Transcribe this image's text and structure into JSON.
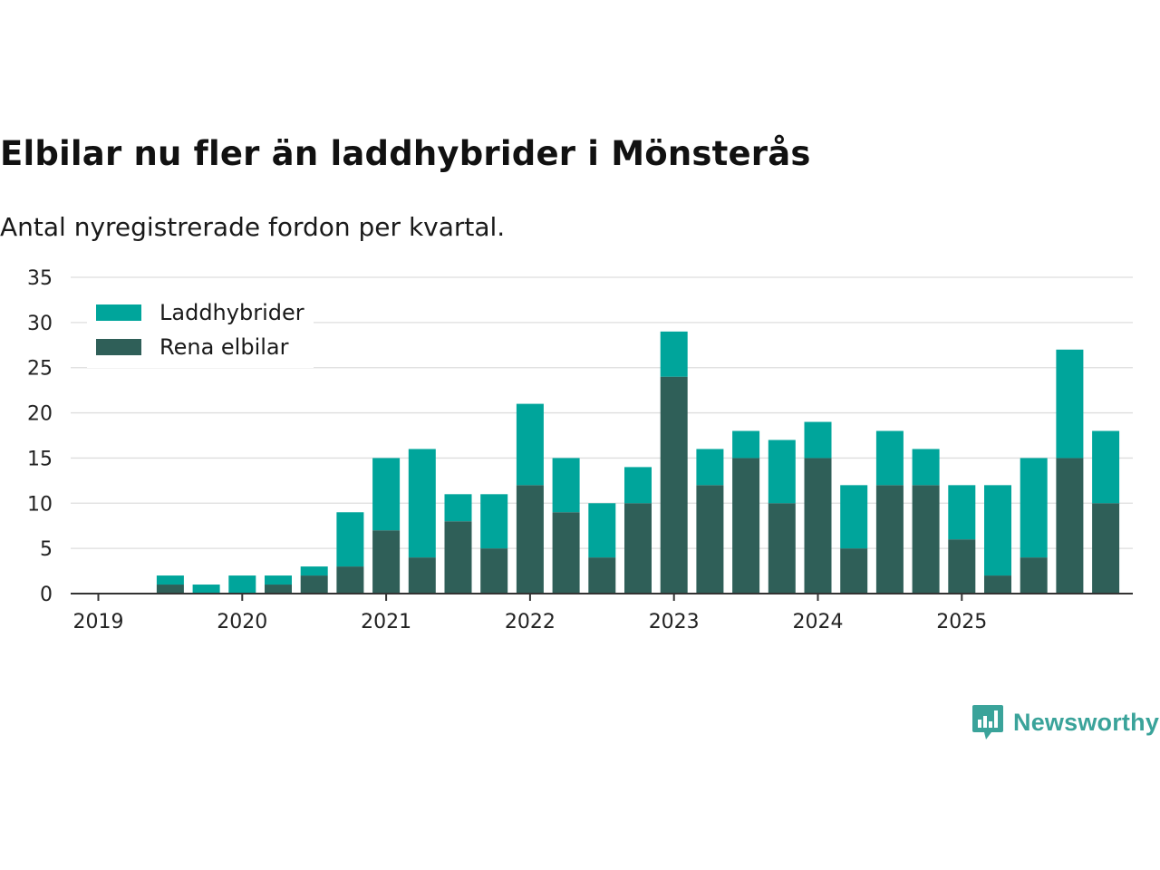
{
  "header": {
    "title": "Elbilar nu fler än laddhybrider i Mönsterås",
    "subtitle": "Antal nyregistrerade fordon per kvartal."
  },
  "brand": {
    "name": "Newsworthy",
    "icon": "newsworthy-logo-icon"
  },
  "colors": {
    "laddhybrider": "#00a59b",
    "rena_elbilar": "#2f5f58",
    "grid": "#dedede",
    "axis": "#333333"
  },
  "chart_data": {
    "type": "bar",
    "stacked": true,
    "title": "Elbilar nu fler än laddhybrider i Mönsterås",
    "subtitle": "Antal nyregistrerade fordon per kvartal.",
    "xlabel": "",
    "ylabel": "",
    "ylim": [
      0,
      35
    ],
    "yticks": [
      0,
      5,
      10,
      15,
      20,
      25,
      30,
      35
    ],
    "xticks": [
      "2019",
      "2020",
      "2021",
      "2022",
      "2023",
      "2024",
      "2025"
    ],
    "legend_position": "top-left",
    "categories": [
      "2019 Q1",
      "2019 Q2",
      "2019 Q3",
      "2019 Q4",
      "2020 Q1",
      "2020 Q2",
      "2020 Q3",
      "2020 Q4",
      "2021 Q1",
      "2021 Q2",
      "2021 Q3",
      "2021 Q4",
      "2022 Q1",
      "2022 Q2",
      "2022 Q3",
      "2022 Q4",
      "2023 Q1",
      "2023 Q2",
      "2023 Q3",
      "2023 Q4",
      "2024 Q1",
      "2024 Q2",
      "2024 Q3",
      "2024 Q4",
      "2025 Q1",
      "2025 Q2",
      "2025 Q3",
      "2025 Q4"
    ],
    "series": [
      {
        "name": "Rena elbilar",
        "color": "#2f5f58",
        "values": [
          0,
          1,
          0,
          0,
          1,
          2,
          3,
          7,
          4,
          8,
          5,
          12,
          9,
          4,
          10,
          24,
          12,
          15,
          10,
          15,
          5,
          12,
          12,
          6,
          2,
          4,
          15,
          10
        ]
      },
      {
        "name": "Laddhybrider",
        "color": "#00a59b",
        "values": [
          0,
          1,
          1,
          2,
          1,
          1,
          6,
          8,
          12,
          3,
          6,
          9,
          6,
          6,
          4,
          5,
          4,
          3,
          7,
          4,
          7,
          6,
          4,
          6,
          10,
          11,
          12,
          8
        ]
      }
    ]
  }
}
